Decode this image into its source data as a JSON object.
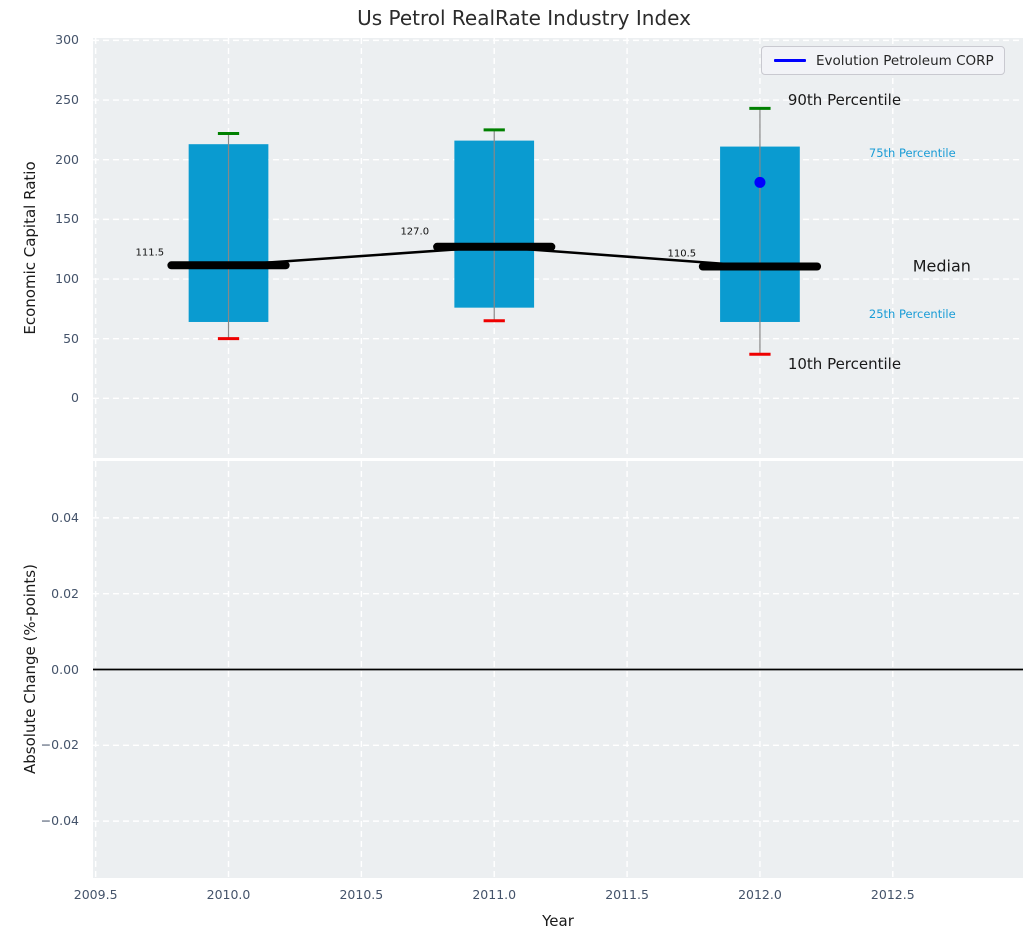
{
  "figure": {
    "title": "Us Petrol RealRate Industry Index",
    "background": "#ffffff",
    "axes_background": "#eceff1",
    "grid_color": "#ffffff",
    "tick_color": "#44536a",
    "text_color": "#2b2b2b"
  },
  "legend": {
    "label": "Evolution Petroleum CORP",
    "line_color": "#0000ff"
  },
  "chart_data": [
    {
      "type": "box-percentile",
      "title": "Us Petrol RealRate Industry Index",
      "xlabel": "Year",
      "ylabel": "Economic Capital Ratio",
      "xlim": [
        2009.49,
        2012.99
      ],
      "ylim": [
        -50,
        302
      ],
      "xticks": [
        2009.5,
        2010.0,
        2010.5,
        2011.0,
        2011.5,
        2012.0,
        2012.5
      ],
      "xtick_labels": [
        "2009.5",
        "2010.0",
        "2010.5",
        "2011.0",
        "2011.5",
        "2012.0",
        "2012.5"
      ],
      "show_xtick_labels": false,
      "yticks": [
        0,
        50,
        100,
        150,
        200,
        250,
        300
      ],
      "ytick_labels": [
        "0",
        "50",
        "100",
        "150",
        "200",
        "250",
        "300"
      ],
      "grid": true,
      "legend_position": "upper right",
      "categories": [
        2010,
        2011,
        2012
      ],
      "series": [
        {
          "name": "90th Percentile",
          "values": [
            222,
            225,
            243
          ]
        },
        {
          "name": "75th Percentile",
          "values": [
            213,
            216,
            211
          ]
        },
        {
          "name": "Median",
          "values": [
            111.5,
            127.0,
            110.5
          ]
        },
        {
          "name": "25th Percentile",
          "values": [
            64,
            76,
            64
          ]
        },
        {
          "name": "10th Percentile",
          "values": [
            50,
            65,
            37
          ]
        }
      ],
      "company_point": {
        "name": "Evolution Petroleum CORP",
        "x": 2012,
        "y": 181
      },
      "median_value_labels": [
        {
          "text": "111.5",
          "year": 2009.704,
          "value": 122
        },
        {
          "text": "127.0",
          "year": 2010.701,
          "value": 139
        },
        {
          "text": "110.5",
          "year": 2011.706,
          "value": 121
        }
      ],
      "annotations": [
        {
          "text": "90th Percentile",
          "year": 2012.105,
          "value": 250,
          "color": "#1a1a1a",
          "size": 15
        },
        {
          "text": "75th Percentile",
          "year": 2012.41,
          "value": 206,
          "color": "#1a9cd6",
          "size": 11.5
        },
        {
          "text": "Median",
          "year": 2012.575,
          "value": 111,
          "color": "#1a1a1a",
          "size": 16
        },
        {
          "text": "25th Percentile",
          "year": 2012.41,
          "value": 71,
          "color": "#1a9cd6",
          "size": 11.5
        },
        {
          "text": "10th Percentile",
          "year": 2012.105,
          "value": 29,
          "color": "#1a1a1a",
          "size": 15
        }
      ],
      "styles": {
        "bar_color": "#0a9bd0",
        "bar_halfwidth": 0.15,
        "p90_cap_color": "#008000",
        "p10_cap_color": "#ee0000",
        "cap_halfwidth": 0.04,
        "whisker_color": "#888888",
        "median_color": "#000000",
        "median_halfwidth": 0.215,
        "company_color": "#0000ff"
      }
    },
    {
      "type": "line",
      "xlabel": "Year",
      "ylabel": "Absolute Change (%-points)",
      "xlim": [
        2009.49,
        2012.99
      ],
      "ylim": [
        -0.055,
        0.055
      ],
      "xticks": [
        2009.5,
        2010.0,
        2010.5,
        2011.0,
        2011.5,
        2012.0,
        2012.5
      ],
      "xtick_labels": [
        "2009.5",
        "2010.0",
        "2010.5",
        "2011.0",
        "2011.5",
        "2012.0",
        "2012.5"
      ],
      "show_xtick_labels": true,
      "yticks": [
        0.04,
        0.02,
        0.0,
        -0.02,
        -0.04
      ],
      "ytick_labels": [
        "0.04",
        "0.02",
        "0.00",
        "−0.02",
        "−0.04"
      ],
      "grid": true,
      "zero_line": true,
      "series": []
    }
  ]
}
